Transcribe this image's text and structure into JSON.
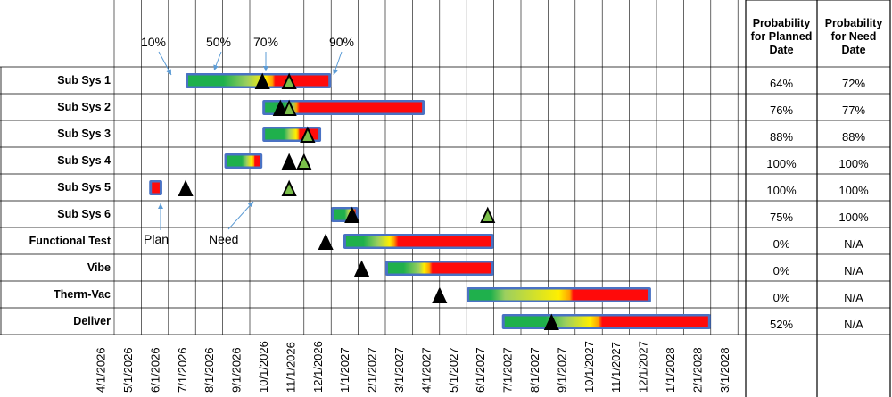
{
  "colors": {
    "grid": "#000000",
    "bar_border": "#4a72c4",
    "green": "#1fb04c",
    "light_green": "#9ccf5f",
    "yellow": "#ffef00",
    "orange": "#ffa000",
    "red": "#ff0a0a",
    "plan_marker": "#000000",
    "need_marker": "#7bbf4a",
    "arrow": "#5b9bd5"
  },
  "header": {
    "prob_planned": [
      "Probability",
      "for Planned",
      "Date"
    ],
    "prob_need": [
      "Probability",
      "for Need",
      "Date"
    ]
  },
  "percent_labels": [
    "10%",
    "50%",
    "70%",
    "90%"
  ],
  "annotations": {
    "plan": "Plan",
    "need": "Need"
  },
  "chart_data": {
    "type": "gantt",
    "dates": [
      "4/1/2026",
      "5/1/2026",
      "6/1/2026",
      "7/1/2026",
      "8/1/2026",
      "9/1/2026",
      "10/1/2026",
      "11/1/2026",
      "12/1/2026",
      "1/1/2027",
      "2/1/2027",
      "3/1/2027",
      "4/1/2027",
      "5/1/2027",
      "6/1/2027",
      "7/1/2027",
      "8/1/2027",
      "9/1/2027",
      "10/1/2027",
      "11/1/2027",
      "12/1/2027",
      "1/1/2028",
      "2/1/2028",
      "3/1/2028"
    ],
    "rows": [
      {
        "name": "Sub Sys 1",
        "start": "6/20/2026",
        "end": "12/1/2026",
        "stops": [
          [
            "green",
            0
          ],
          [
            "green",
            0.25
          ],
          [
            "light_green",
            0.42
          ],
          [
            "yellow",
            0.55
          ],
          [
            "orange",
            0.6
          ],
          [
            "red",
            0.62
          ],
          [
            "red",
            1
          ]
        ],
        "plan": "9/15/2026",
        "need": "10/15/2026",
        "prob_planned": "64%",
        "prob_need": "72%"
      },
      {
        "name": "Sub Sys 2",
        "start": "9/15/2026",
        "end": "3/15/2027",
        "stops": [
          [
            "green",
            0
          ],
          [
            "green",
            0.12
          ],
          [
            "light_green",
            0.18
          ],
          [
            "orange",
            0.2
          ],
          [
            "red",
            0.22
          ],
          [
            "red",
            1
          ]
        ],
        "plan": "10/5/2026",
        "need": "10/15/2026",
        "prob_planned": "76%",
        "prob_need": "77%"
      },
      {
        "name": "Sub Sys 3",
        "start": "9/15/2026",
        "end": "11/20/2026",
        "stops": [
          [
            "green",
            0
          ],
          [
            "green",
            0.35
          ],
          [
            "light_green",
            0.45
          ],
          [
            "yellow",
            0.58
          ],
          [
            "orange",
            0.62
          ],
          [
            "red",
            0.65
          ],
          [
            "red",
            1
          ]
        ],
        "plan": "11/5/2026",
        "need": "11/5/2026",
        "prob_planned": "88%",
        "prob_need": "88%"
      },
      {
        "name": "Sub Sys 4",
        "start": "8/3/2026",
        "end": "9/15/2026",
        "stops": [
          [
            "green",
            0
          ],
          [
            "green",
            0.45
          ],
          [
            "light_green",
            0.6
          ],
          [
            "yellow",
            0.75
          ],
          [
            "orange",
            0.82
          ],
          [
            "red",
            0.85
          ],
          [
            "red",
            1
          ]
        ],
        "plan": "10/15/2026",
        "need": "11/1/2026",
        "prob_planned": "100%",
        "prob_need": "100%"
      },
      {
        "name": "Sub Sys 5",
        "start": "5/10/2026",
        "end": "5/25/2026",
        "stops": [
          [
            "red",
            0
          ],
          [
            "red",
            1
          ]
        ],
        "plan": "6/20/2026",
        "need": "10/15/2026",
        "prob_planned": "100%",
        "prob_need": "100%"
      },
      {
        "name": "Sub Sys 6",
        "start": "12/1/2026",
        "end": "1/1/2027",
        "stops": [
          [
            "green",
            0
          ],
          [
            "green",
            0.5
          ],
          [
            "light_green",
            0.65
          ],
          [
            "yellow",
            0.8
          ],
          [
            "orange",
            0.9
          ],
          [
            "red",
            1
          ]
        ],
        "plan": "12/25/2026",
        "need": "5/25/2027",
        "prob_planned": "75%",
        "prob_need": "100%"
      },
      {
        "name": "Functional Test",
        "start": "12/15/2026",
        "end": "6/1/2027",
        "stops": [
          [
            "green",
            0
          ],
          [
            "green",
            0.12
          ],
          [
            "light_green",
            0.22
          ],
          [
            "yellow",
            0.3
          ],
          [
            "orange",
            0.33
          ],
          [
            "red",
            0.36
          ],
          [
            "red",
            1
          ]
        ],
        "plan": "11/25/2026",
        "need": "",
        "prob_planned": "0%",
        "prob_need": "N/A"
      },
      {
        "name": "Vibe",
        "start": "2/1/2027",
        "end": "6/1/2027",
        "stops": [
          [
            "green",
            0
          ],
          [
            "green",
            0.15
          ],
          [
            "light_green",
            0.3
          ],
          [
            "yellow",
            0.35
          ],
          [
            "orange",
            0.4
          ],
          [
            "red",
            0.43
          ],
          [
            "red",
            1
          ]
        ],
        "plan": "1/5/2027",
        "need": "",
        "prob_planned": "0%",
        "prob_need": "N/A"
      },
      {
        "name": "Therm-Vac",
        "start": "5/1/2027",
        "end": "11/25/2027",
        "stops": [
          [
            "green",
            0
          ],
          [
            "green",
            0.12
          ],
          [
            "light_green",
            0.2
          ],
          [
            "yellow",
            0.5
          ],
          [
            "orange",
            0.56
          ],
          [
            "red",
            0.58
          ],
          [
            "red",
            1
          ]
        ],
        "plan": "4/1/2027",
        "need": "",
        "prob_planned": "0%",
        "prob_need": "N/A"
      },
      {
        "name": "Deliver",
        "start": "6/10/2027",
        "end": "2/1/2028",
        "stops": [
          [
            "green",
            0
          ],
          [
            "green",
            0.2
          ],
          [
            "light_green",
            0.3
          ],
          [
            "yellow",
            0.42
          ],
          [
            "orange",
            0.46
          ],
          [
            "red",
            0.48
          ],
          [
            "red",
            1
          ]
        ],
        "plan": "8/5/2027",
        "need": "",
        "prob_planned": "52%",
        "prob_need": "N/A"
      }
    ]
  }
}
